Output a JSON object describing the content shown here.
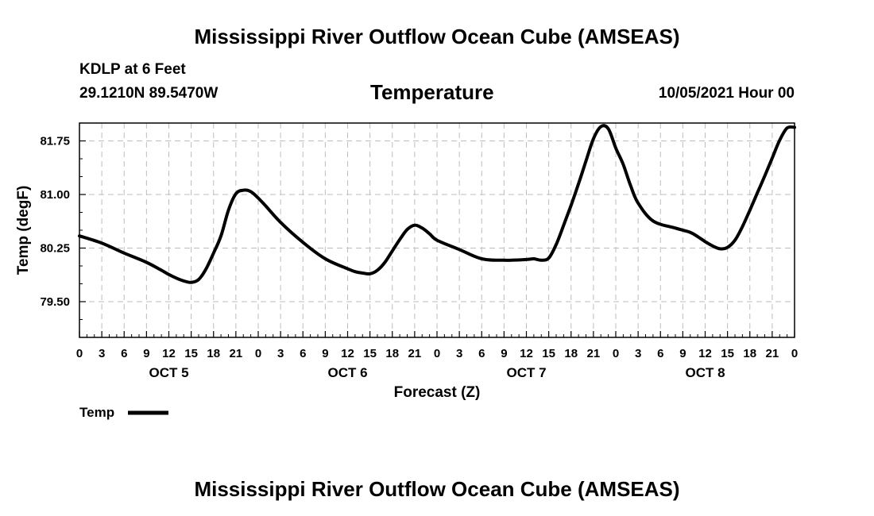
{
  "header": {
    "title": "Mississippi River Outflow Ocean Cube (AMSEAS)",
    "station": "KDLP at 6 Feet",
    "coords": "29.1210N  89.5470W",
    "variable": "Temperature",
    "datetime": "10/05/2021 Hour 00"
  },
  "footer": {
    "title": "Mississippi River Outflow Ocean Cube (AMSEAS)"
  },
  "chart_data": {
    "type": "line",
    "title": "Temperature",
    "xlabel": "Forecast (Z)",
    "ylabel": "Temp (degF)",
    "xlim": [
      0,
      96
    ],
    "ylim": [
      79.0,
      82.0
    ],
    "grid": true,
    "yticks": [
      79.5,
      80.25,
      81.0,
      81.75
    ],
    "ytick_labels": [
      "79.50",
      "80.25",
      "81.00",
      "81.75"
    ],
    "xtick_labels": [
      "0",
      "3",
      "6",
      "9",
      "12",
      "15",
      "18",
      "21",
      "0",
      "3",
      "6",
      "9",
      "12",
      "15",
      "18",
      "21",
      "0",
      "3",
      "6",
      "9",
      "12",
      "15",
      "18",
      "21",
      "0",
      "3",
      "6",
      "9",
      "12",
      "15",
      "18",
      "21",
      "0"
    ],
    "day_labels": [
      {
        "label": "OCT 5",
        "hour": 12
      },
      {
        "label": "OCT 6",
        "hour": 36
      },
      {
        "label": "OCT 7",
        "hour": 60
      },
      {
        "label": "OCT 8",
        "hour": 84
      }
    ],
    "legend": {
      "label": "Temp",
      "placement": "bottom-left"
    },
    "series": [
      {
        "name": "Temp",
        "x": [
          0,
          3,
          6,
          9,
          11,
          12,
          13,
          14,
          15,
          16,
          17,
          18,
          19,
          20,
          21,
          22,
          23,
          24,
          25,
          27,
          30,
          33,
          36,
          37,
          38,
          39,
          40,
          41,
          42,
          43,
          44,
          45,
          46,
          47,
          48,
          51,
          54,
          57,
          60,
          61,
          62,
          63,
          64,
          65,
          66,
          67,
          68,
          69,
          70,
          71,
          72,
          73,
          74,
          75,
          77,
          80,
          82,
          83,
          84,
          85,
          86,
          87,
          88,
          89,
          90,
          91,
          92,
          93,
          94,
          95,
          96
        ],
        "values": [
          80.42,
          80.32,
          80.18,
          80.05,
          79.94,
          79.88,
          79.83,
          79.79,
          79.77,
          79.81,
          79.96,
          80.18,
          80.42,
          80.78,
          81.01,
          81.06,
          81.04,
          80.95,
          80.84,
          80.61,
          80.33,
          80.1,
          79.96,
          79.92,
          79.9,
          79.89,
          79.94,
          80.05,
          80.21,
          80.37,
          80.51,
          80.57,
          80.53,
          80.45,
          80.36,
          80.23,
          80.1,
          80.08,
          80.09,
          80.1,
          80.08,
          80.11,
          80.3,
          80.57,
          80.85,
          81.15,
          81.47,
          81.78,
          81.95,
          81.92,
          81.65,
          81.42,
          81.12,
          80.88,
          80.63,
          80.53,
          80.47,
          80.41,
          80.34,
          80.28,
          80.24,
          80.26,
          80.36,
          80.55,
          80.78,
          81.02,
          81.26,
          81.51,
          81.76,
          81.93,
          81.94
        ]
      }
    ]
  }
}
